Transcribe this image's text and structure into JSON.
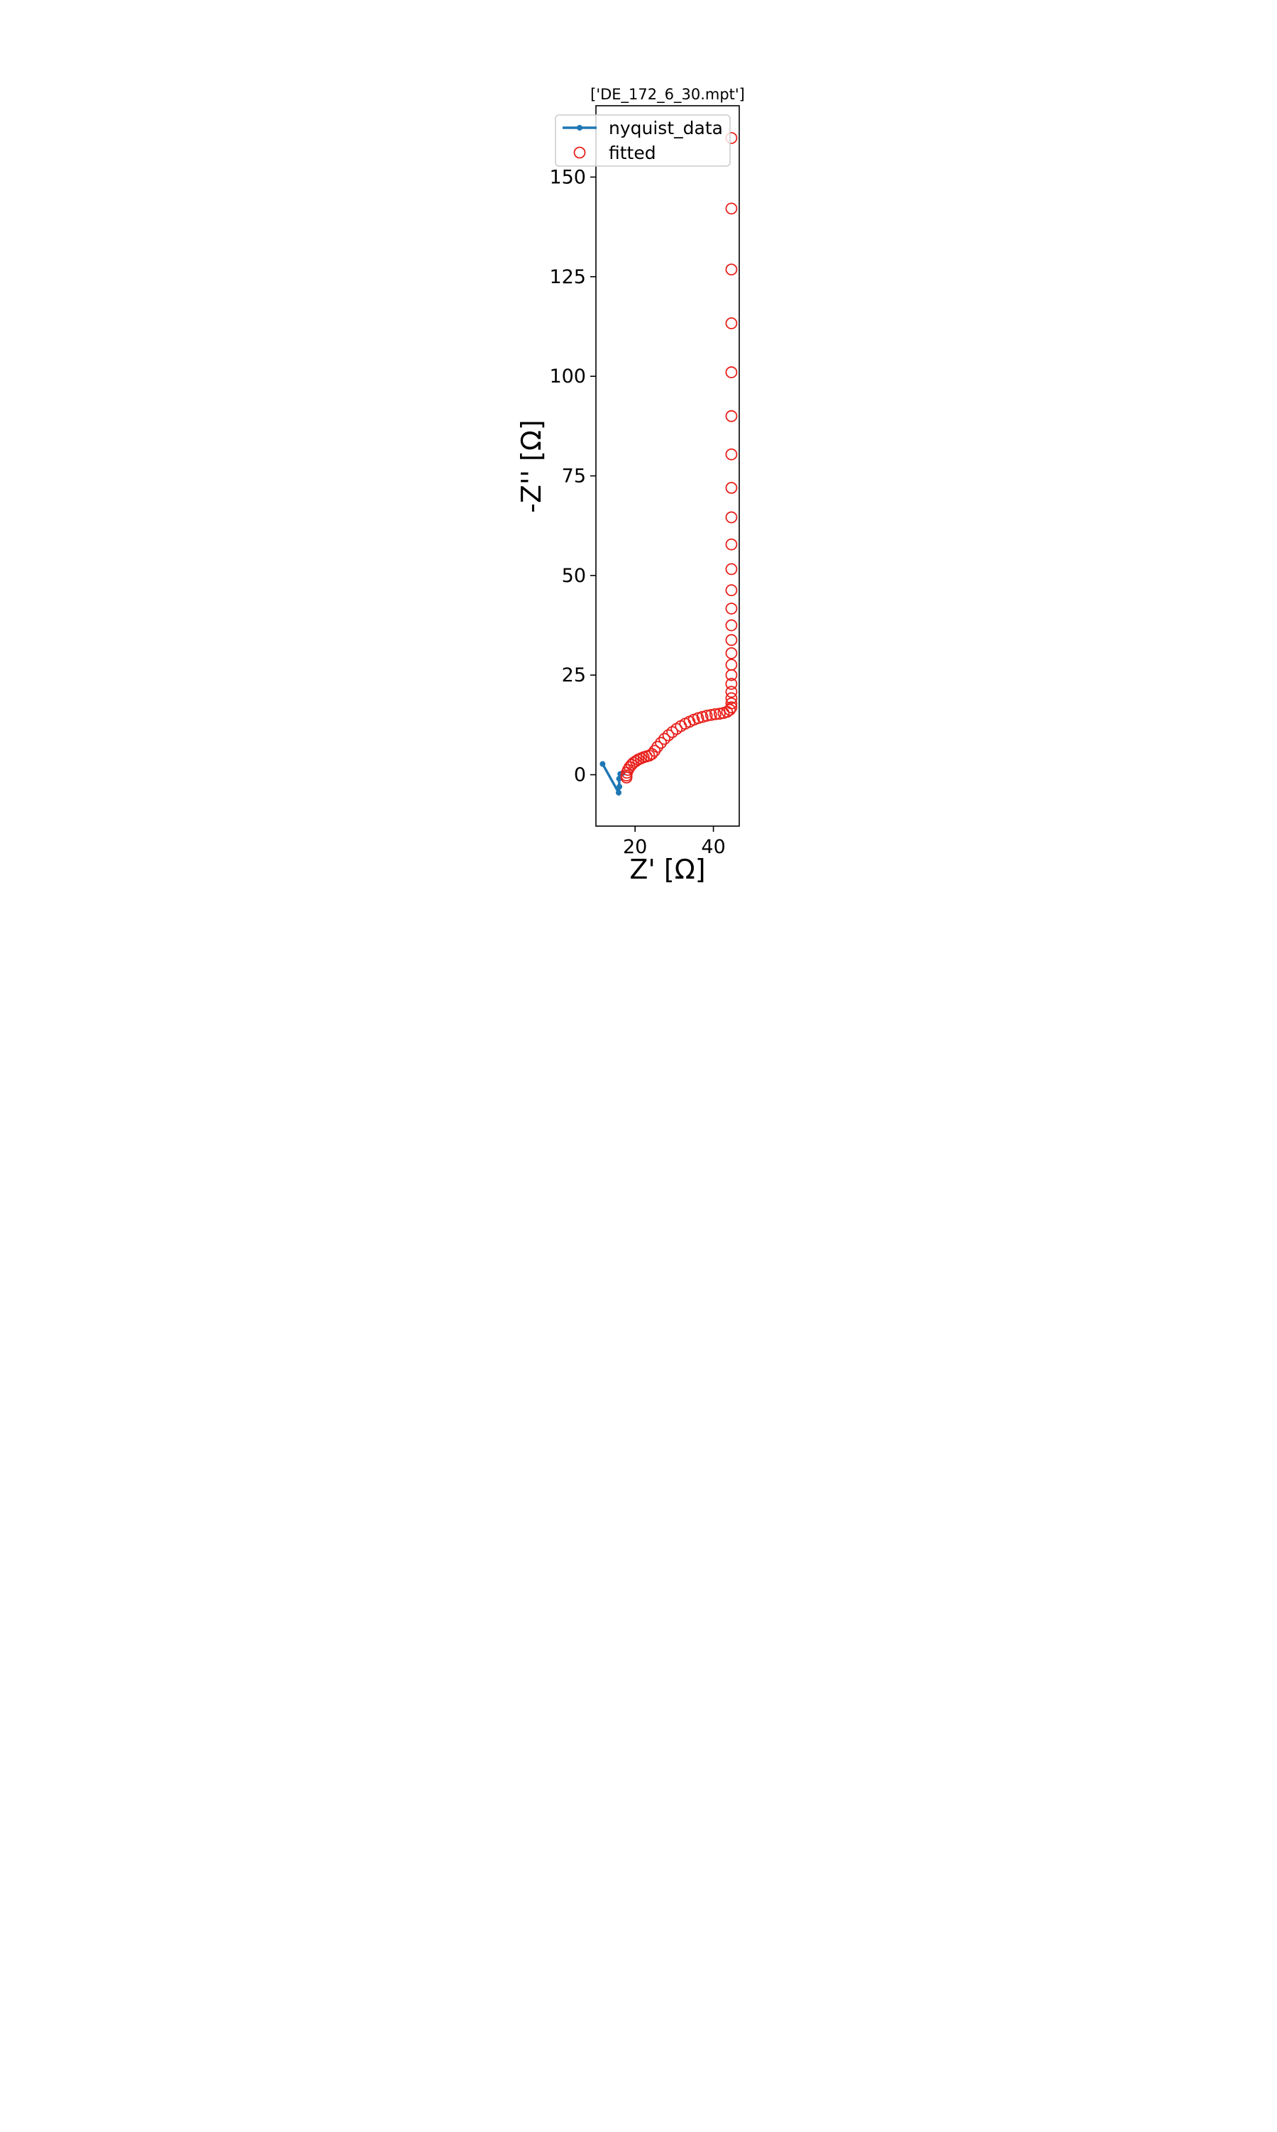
{
  "chart_data": {
    "type": "scatter",
    "title": "['DE_172_6_30.mpt']",
    "x_label": "Z' [Ω]",
    "y_label": "-Z'' [Ω]",
    "xlim": [
      10,
      46.6
    ],
    "xticks": [
      20,
      40
    ],
    "ylim": [
      -12.9,
      167.9
    ],
    "yticks": [
      0,
      25,
      50,
      75,
      100,
      125,
      150
    ],
    "legend": "upper left",
    "series": [
      {
        "name": "nyquist_data",
        "color": "#1f77b4",
        "style": "line",
        "x": [
          11.7,
          15.8,
          16.0,
          15.9,
          16.2,
          16.8
        ],
        "values": [
          2.7,
          -4.5,
          -3.0,
          -1.0,
          0.2,
          0.4
        ]
      },
      {
        "name": "fitted",
        "color": "#e8201c",
        "style": "open-circle",
        "x": [
          44.6,
          44.6,
          44.6,
          44.6,
          44.6,
          44.6,
          44.6,
          44.6,
          44.6,
          44.6,
          44.6,
          44.6,
          44.6,
          44.6,
          44.6,
          44.6,
          44.6,
          44.6,
          44.6,
          44.6,
          44.6,
          44.6,
          44.6,
          44.2,
          43.5,
          42.6,
          41.6,
          40.5,
          39.4,
          38.3,
          37.2,
          36.1,
          35.0,
          33.9,
          32.8,
          31.7,
          30.6,
          29.5,
          28.5,
          27.5,
          26.6,
          25.7,
          25.0,
          24.3,
          23.6,
          22.9,
          22.2,
          21.5,
          20.8,
          20.2,
          19.6,
          19.1,
          18.6,
          18.2,
          17.9,
          17.8,
          17.8
        ],
        "values": [
          159.8,
          142.1,
          126.8,
          113.3,
          101,
          90,
          80.4,
          72,
          64.6,
          57.8,
          51.6,
          46.3,
          41.7,
          37.5,
          33.8,
          30.5,
          27.6,
          25,
          22.8,
          20.8,
          19.2,
          17.9,
          16.9,
          16.3,
          15.8,
          15.5,
          15.3,
          15.2,
          15.0,
          14.8,
          14.5,
          14.2,
          13.8,
          13.3,
          12.8,
          12.2,
          11.5,
          10.7,
          9.9,
          9.0,
          8.0,
          7.0,
          6.0,
          5.2,
          4.8,
          4.6,
          4.4,
          4.1,
          3.8,
          3.4,
          3.0,
          2.5,
          1.9,
          1.2,
          0.5,
          -0.2,
          -0.7
        ]
      }
    ]
  }
}
